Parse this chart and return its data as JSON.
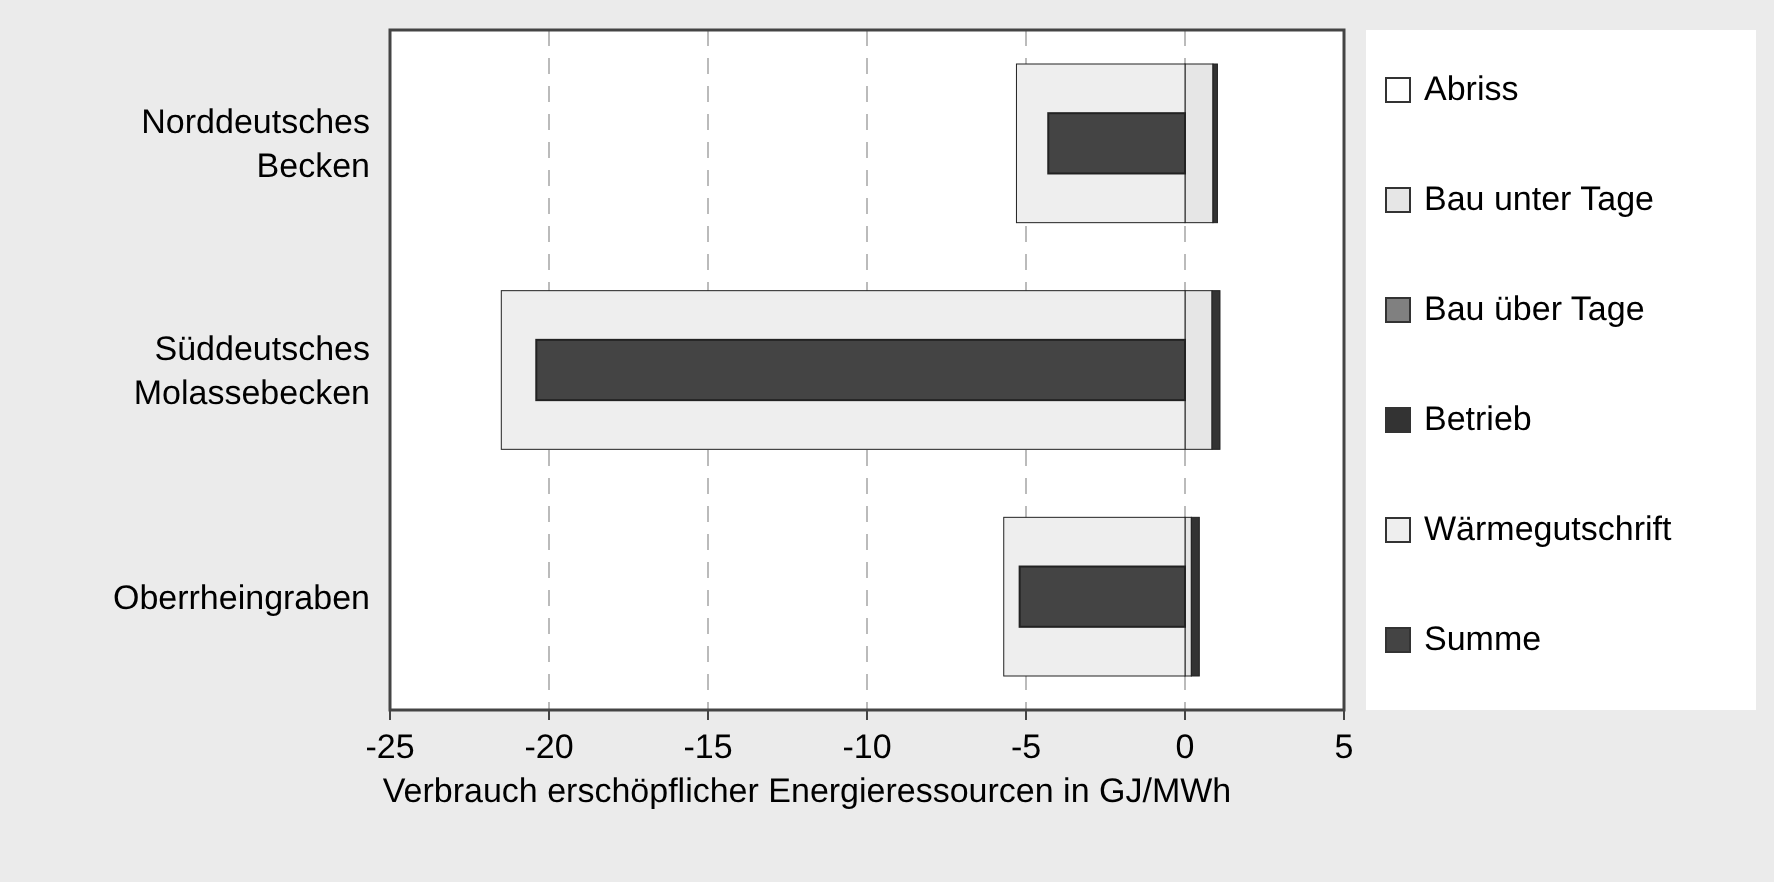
{
  "chart_data": [
    {
      "type": "bar",
      "orientation": "horizontal",
      "stacked": true,
      "categories": [
        "Norddeutsches Becken",
        "Süddeutsches Molassebecken",
        "Oberrheingraben"
      ],
      "series": [
        {
          "name": "Abriss",
          "color": "#ffffff",
          "values": [
            0,
            0,
            0
          ]
        },
        {
          "name": "Bau unter Tage",
          "color": "#e6e6e6",
          "values": [
            0.88,
            0.85,
            0.2
          ]
        },
        {
          "name": "Bau über Tage",
          "color": "#808080",
          "values": [
            0,
            0,
            0
          ]
        },
        {
          "name": "Betrieb",
          "color": "#333333",
          "values": [
            0.14,
            0.25,
            0.25
          ]
        },
        {
          "name": "Wärmegutschrift",
          "color": "#eeeeee",
          "values": [
            -5.3,
            -21.5,
            -5.7
          ]
        }
      ],
      "xlim": [
        -25,
        5
      ],
      "xticks": [
        -25,
        -20,
        -15,
        -10,
        -5,
        0,
        5
      ],
      "xlabel": "Verbrauch erschöpflicher Energieressourcen in GJ/MWh",
      "grid": "x",
      "legend": "right"
    },
    {
      "type": "bar",
      "orientation": "horizontal",
      "categories": [
        null,
        null,
        null
      ],
      "series": [
        {
          "name": "Summe",
          "color": "#444444",
          "values": [
            -4.3,
            -20.4,
            -5.2
          ]
        }
      ],
      "xlim": [
        -25,
        5
      ],
      "legend": "right"
    }
  ]
}
